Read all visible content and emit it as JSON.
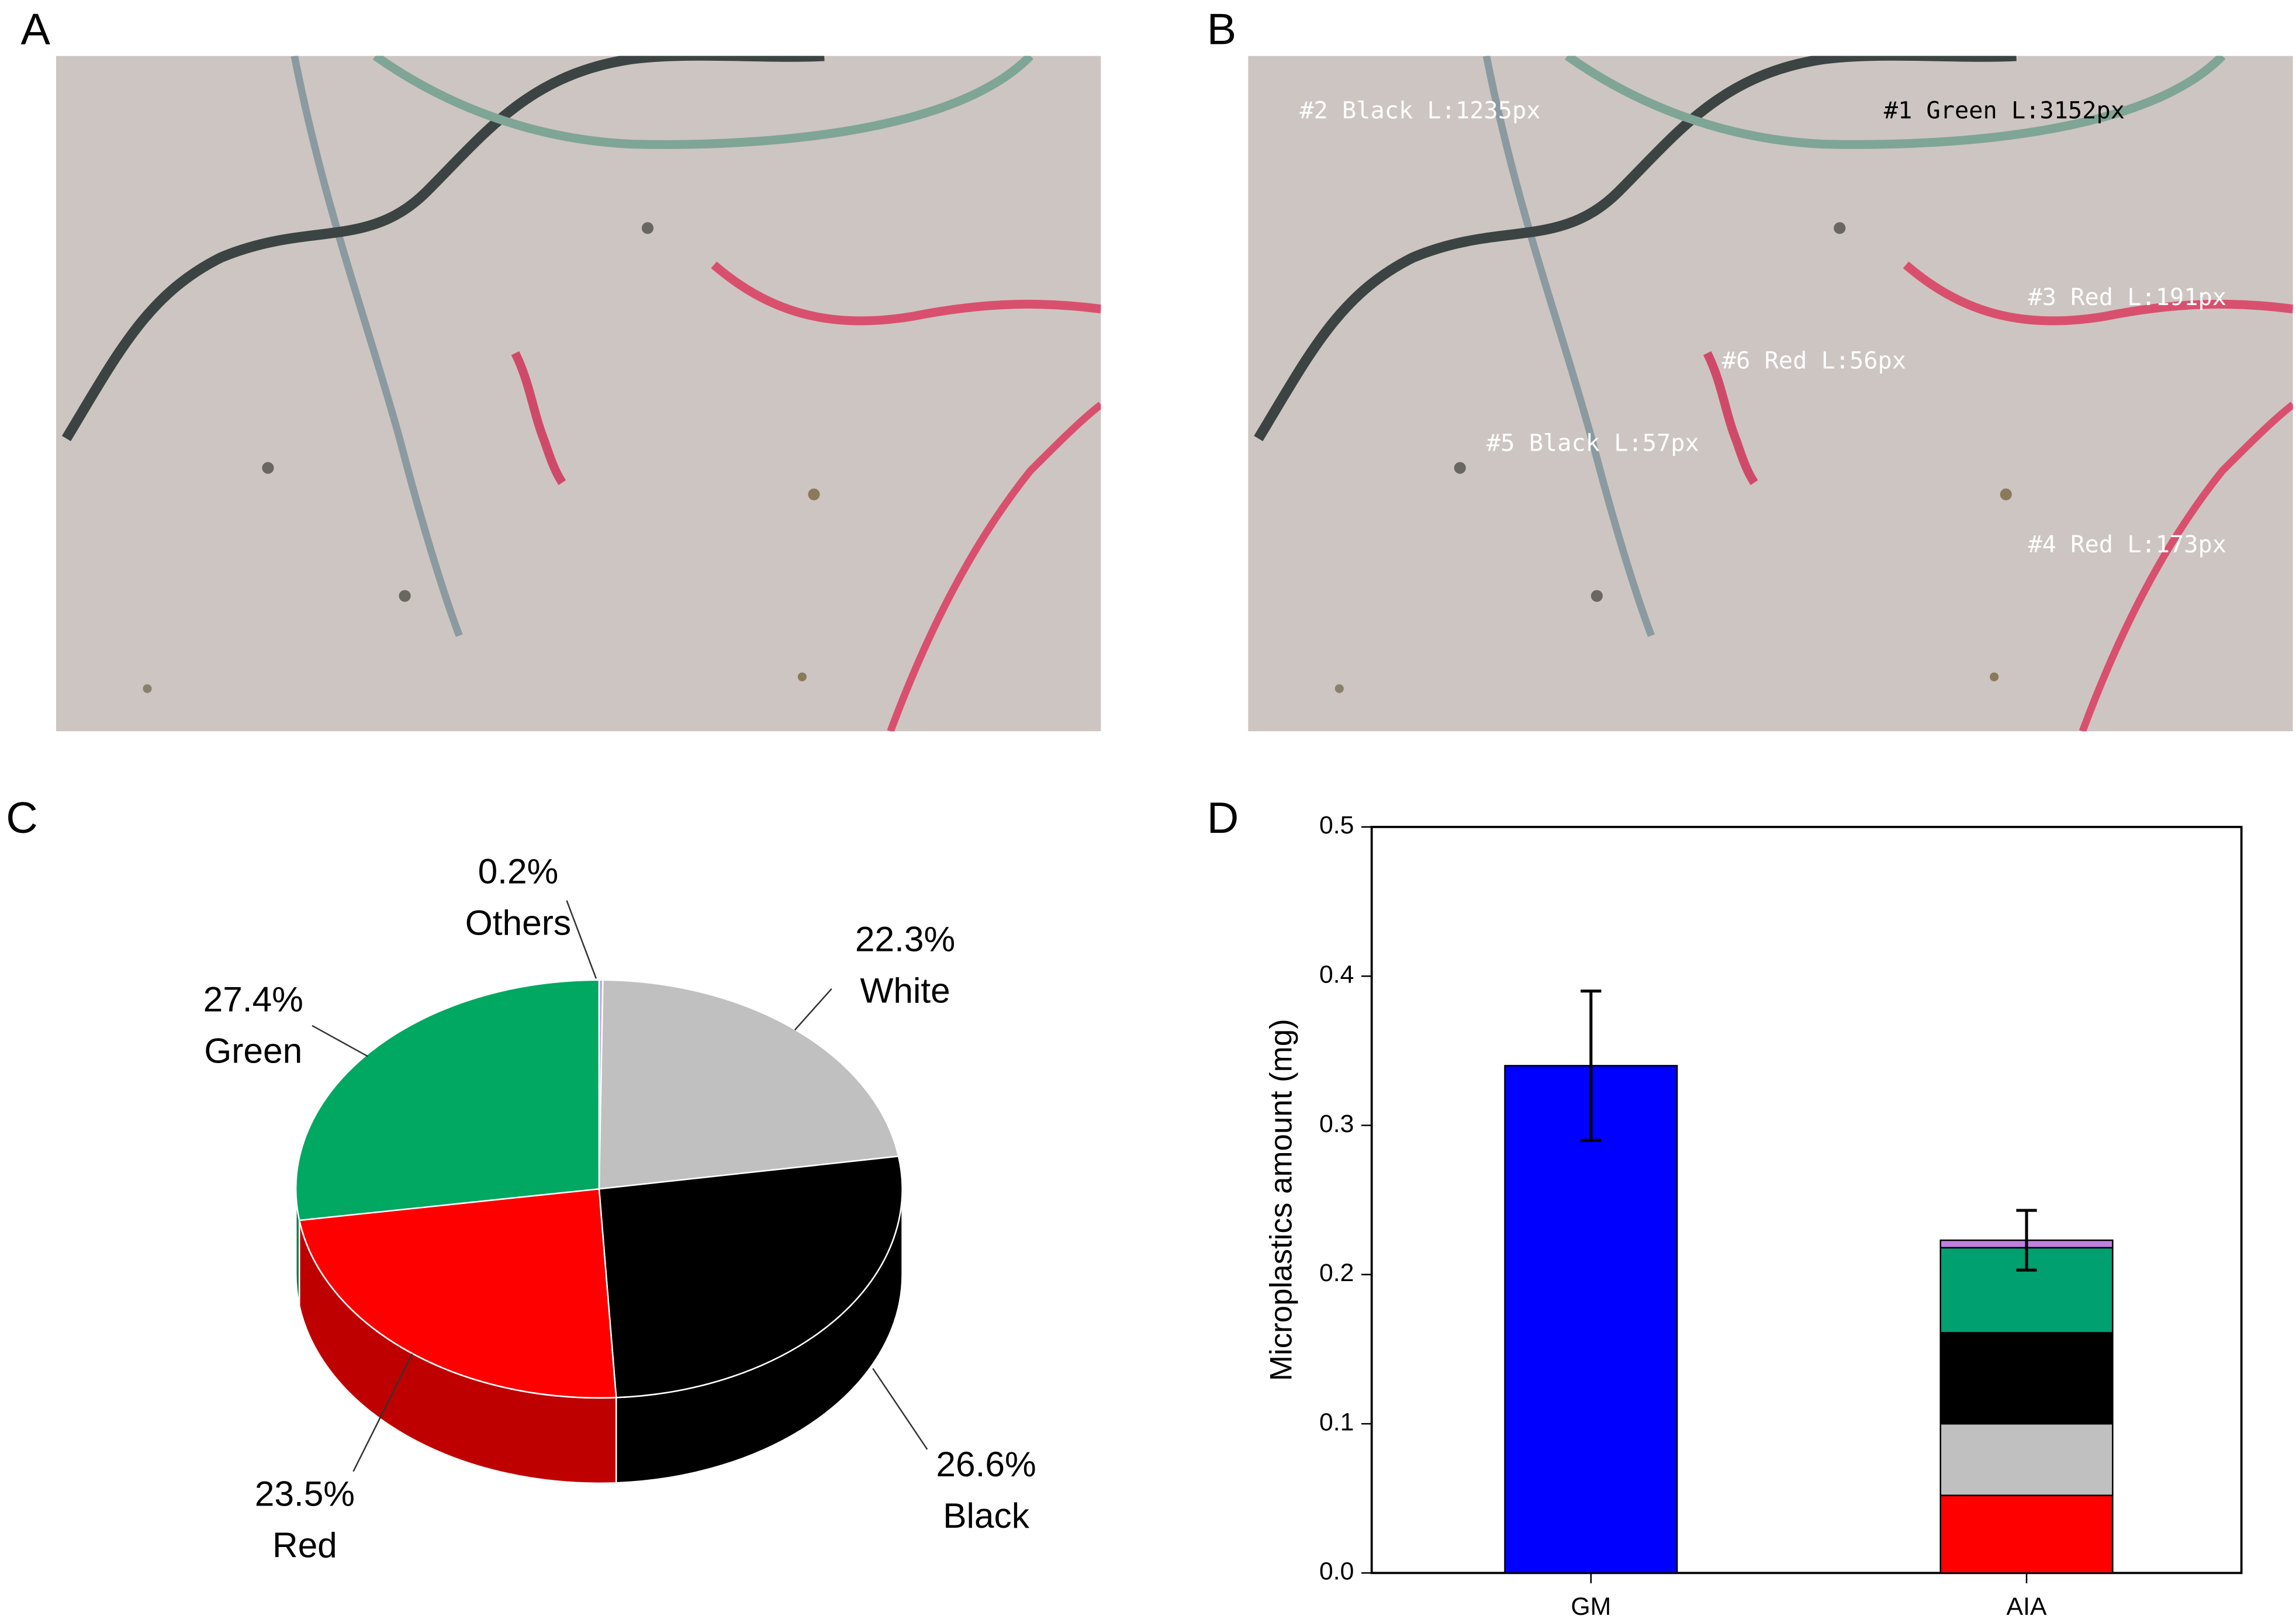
{
  "panel_labels": [
    "A",
    "B",
    "C",
    "D"
  ],
  "photo_annotations": [
    "#2 Black L:1235px",
    "#1 Green L:3152px",
    "#3 Red L:191px",
    "#6 Red L:56px",
    "#5 Black L:57px",
    "#4 Red L:173px"
  ],
  "chart_data": [
    {
      "type": "pie",
      "categories": [
        "Others",
        "White",
        "Black",
        "Red",
        "Green"
      ],
      "values": [
        0.2,
        22.3,
        26.6,
        23.5,
        27.4
      ],
      "value_labels": [
        "0.2%",
        "22.3%",
        "26.6%",
        "23.5%",
        "27.4%"
      ],
      "colors": [
        "#c9a3e6",
        "#c0c0c0",
        "#000000",
        "#ff0000",
        "#00a862"
      ]
    },
    {
      "type": "stacked_bar",
      "y_label": "Microplastics amount (mg)",
      "categories": [
        "GM",
        "AIA"
      ],
      "ylim": [
        0,
        0.5
      ],
      "yticks": [
        {
          "value": 0,
          "label": "0.0"
        },
        0.1,
        0.2,
        0.3,
        0.4,
        0.5
      ],
      "series": [
        {
          "color": "#0000ff",
          "values": [
            0.34,
            null
          ]
        },
        {
          "color": "#ff0000",
          "values": [
            null,
            0.052
          ]
        },
        {
          "color": "#c0c0c0",
          "values": [
            null,
            0.048
          ]
        },
        {
          "color": "#000000",
          "values": [
            null,
            0.061
          ]
        },
        {
          "color": "#00a070",
          "values": [
            null,
            0.057
          ]
        },
        {
          "color": "#c080e0",
          "values": [
            null,
            0.005
          ]
        }
      ],
      "errors": [
        0.05,
        0.02
      ]
    }
  ]
}
